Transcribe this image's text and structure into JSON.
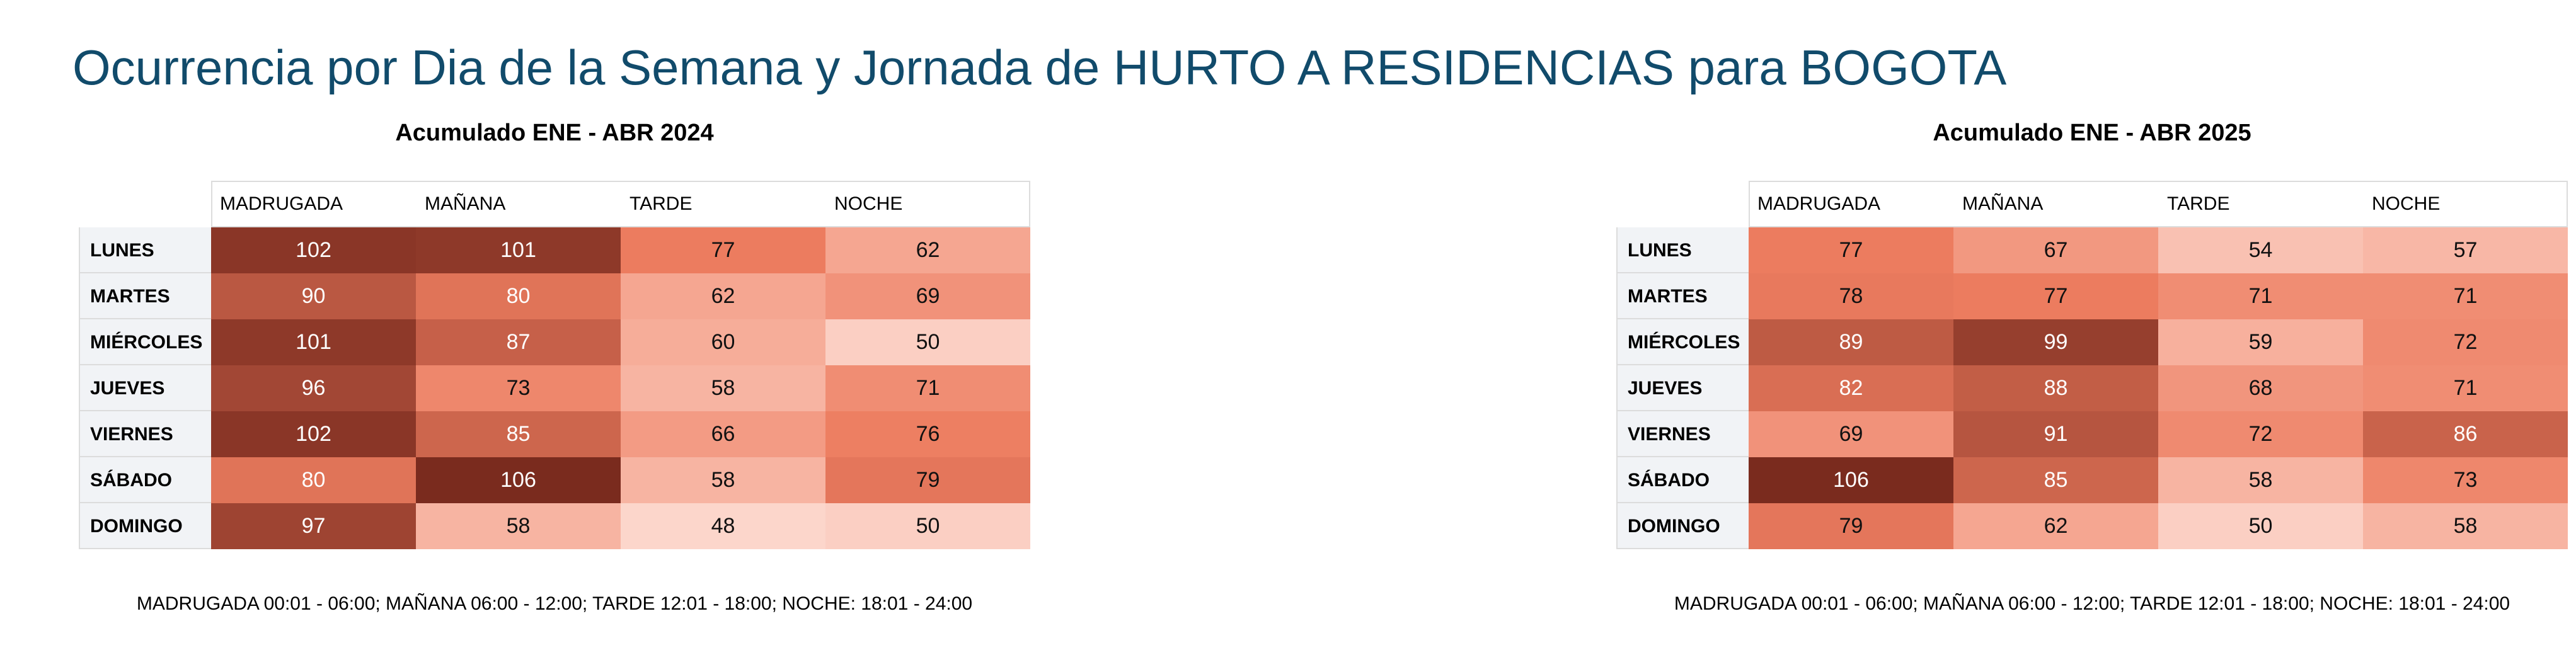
{
  "title": "Ocurrencia por Dia de la Semana y Jornada de HURTO A RESIDENCIAS para BOGOTA",
  "colors": {
    "title": "#114b6b",
    "scale_low": "#fbd3c8",
    "scale_mid": "#ee7c5f",
    "scale_high": "#7a2b1e"
  },
  "chart_data": [
    {
      "type": "heatmap",
      "title": "Acumulado ENE - ABR 2024",
      "columns": [
        "MADRUGADA",
        "MAÑANA",
        "TARDE",
        "NOCHE"
      ],
      "rows": [
        "LUNES",
        "MARTES",
        "MIÉRCOLES",
        "JUEVES",
        "VIERNES",
        "SÁBADO",
        "DOMINGO"
      ],
      "values": [
        [
          102,
          101,
          77,
          62
        ],
        [
          90,
          80,
          62,
          69
        ],
        [
          101,
          87,
          60,
          50
        ],
        [
          96,
          73,
          58,
          71
        ],
        [
          102,
          85,
          66,
          76
        ],
        [
          80,
          106,
          58,
          79
        ],
        [
          97,
          58,
          48,
          50
        ]
      ],
      "footnote": "MADRUGADA 00:01 - 06:00; MAÑANA 06:00 - 12:00; TARDE 12:01 - 18:00; NOCHE: 18:01 - 24:00"
    },
    {
      "type": "heatmap",
      "title": "Acumulado ENE - ABR 2025",
      "columns": [
        "MADRUGADA",
        "MAÑANA",
        "TARDE",
        "NOCHE"
      ],
      "rows": [
        "LUNES",
        "MARTES",
        "MIÉRCOLES",
        "JUEVES",
        "VIERNES",
        "SÁBADO",
        "DOMINGO"
      ],
      "values": [
        [
          77,
          67,
          54,
          57
        ],
        [
          78,
          77,
          71,
          71
        ],
        [
          89,
          99,
          59,
          72
        ],
        [
          82,
          88,
          68,
          71
        ],
        [
          69,
          91,
          72,
          86
        ],
        [
          106,
          85,
          58,
          73
        ],
        [
          79,
          62,
          50,
          58
        ]
      ],
      "footnote": "MADRUGADA 00:01 - 06:00; MAÑANA 06:00 - 12:00; TARDE 12:01 - 18:00; NOCHE: 18:01 - 24:00"
    }
  ]
}
